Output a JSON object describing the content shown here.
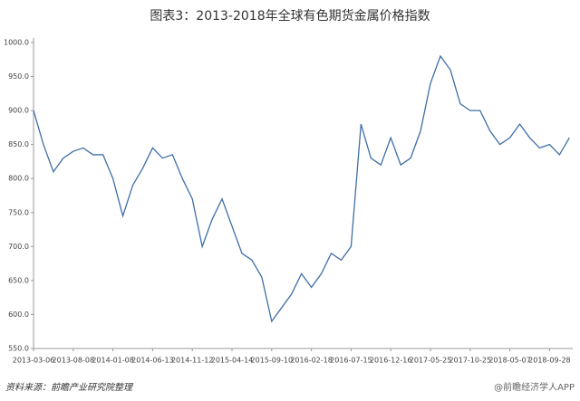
{
  "chart_data": {
    "type": "line",
    "title": "图表3：2013-2018年全球有色期货金属价格指数",
    "source": "资料来源：前瞻产业研究院整理",
    "watermark": "@前瞻经济学人APP",
    "categories": [
      "2013-03-06",
      null,
      null,
      null,
      "2013-08-08",
      null,
      null,
      null,
      "2014-01-08",
      null,
      null,
      null,
      "2014-06-13",
      null,
      null,
      null,
      "2014-11-12",
      null,
      null,
      null,
      "2015-04-14",
      null,
      null,
      null,
      "2015-09-10",
      null,
      null,
      null,
      "2016-02-18",
      null,
      null,
      null,
      "2016-07-15",
      null,
      null,
      null,
      "2016-12-16",
      null,
      null,
      null,
      "2017-05-25",
      null,
      null,
      null,
      "2017-10-25",
      null,
      null,
      null,
      "2018-05-07",
      null,
      null,
      null,
      "2018-09-28",
      null,
      null
    ],
    "series": [
      {
        "name": null,
        "color": "#3f6ea6",
        "values": [
          900,
          850,
          810,
          830,
          840,
          845,
          835,
          835,
          800,
          745,
          790,
          815,
          845,
          830,
          835,
          800,
          770,
          700,
          740,
          770,
          730,
          690,
          680,
          655,
          590,
          610,
          630,
          660,
          640,
          660,
          690,
          680,
          700,
          880,
          830,
          820,
          860,
          820,
          830,
          870,
          940,
          980,
          960,
          910,
          900,
          900,
          870,
          850,
          860,
          880,
          860,
          845,
          850,
          835,
          860
        ]
      }
    ],
    "ylim": [
      550,
      1000
    ],
    "yticks": [
      {
        "value": 550,
        "label": "550.0"
      },
      {
        "value": 600,
        "label": "600.0"
      },
      {
        "value": 650,
        "label": "650.0"
      },
      {
        "value": 700,
        "label": "700.0"
      },
      {
        "value": 750,
        "label": "750.0"
      },
      {
        "value": 800,
        "label": "800.0"
      },
      {
        "value": 850,
        "label": "850.0"
      },
      {
        "value": 900,
        "label": "900.0"
      },
      {
        "value": 950,
        "label": "950.0"
      },
      {
        "value": 1000,
        "label": "1000.0"
      }
    ],
    "grid": false
  }
}
